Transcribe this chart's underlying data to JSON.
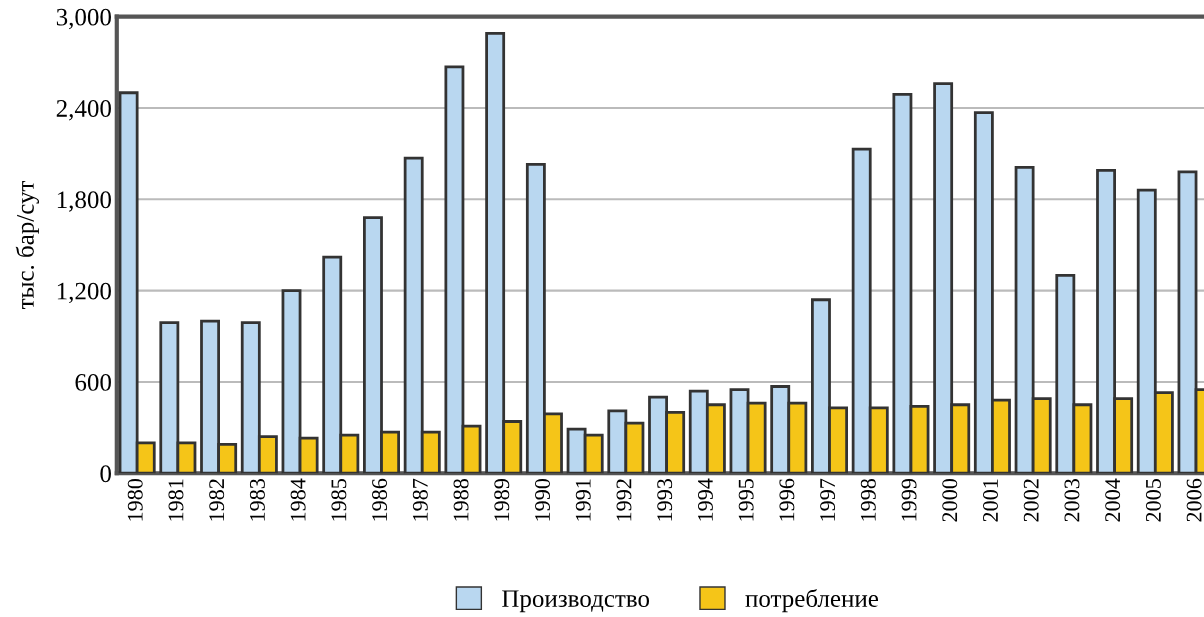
{
  "chart_data": {
    "type": "bar",
    "ylabel": "тыс. бар/сут",
    "categories": [
      "1980",
      "1981",
      "1982",
      "1983",
      "1984",
      "1985",
      "1986",
      "1987",
      "1988",
      "1989",
      "1990",
      "1991",
      "1992",
      "1993",
      "1994",
      "1995",
      "1996",
      "1997",
      "1998",
      "1999",
      "2000",
      "2001",
      "2002",
      "2003",
      "2004",
      "2005",
      "2006"
    ],
    "series": [
      {
        "name": "Производство",
        "color": "#b9d7f0",
        "values": [
          2500,
          990,
          1000,
          990,
          1200,
          1420,
          1680,
          2070,
          2670,
          2890,
          2030,
          290,
          410,
          500,
          540,
          550,
          570,
          1140,
          2130,
          2490,
          2560,
          2370,
          2010,
          1300,
          1990,
          1860,
          1980
        ]
      },
      {
        "name": "потребление",
        "color": "#f5c518",
        "values": [
          200,
          200,
          190,
          240,
          230,
          250,
          270,
          270,
          310,
          340,
          390,
          250,
          330,
          400,
          450,
          460,
          460,
          430,
          430,
          440,
          450,
          480,
          490,
          450,
          490,
          530,
          550
        ]
      }
    ],
    "ylim": [
      0,
      3000
    ],
    "yticks": [
      0,
      {
        "value": 600,
        "label": "600"
      },
      {
        "value": 1200,
        "label": "1,200"
      },
      {
        "value": 1800,
        "label": "1,800"
      },
      {
        "value": 2400,
        "label": "2,400"
      },
      {
        "value": 3000,
        "label": "3,000"
      }
    ],
    "grid": "y",
    "legend": "bottom"
  }
}
